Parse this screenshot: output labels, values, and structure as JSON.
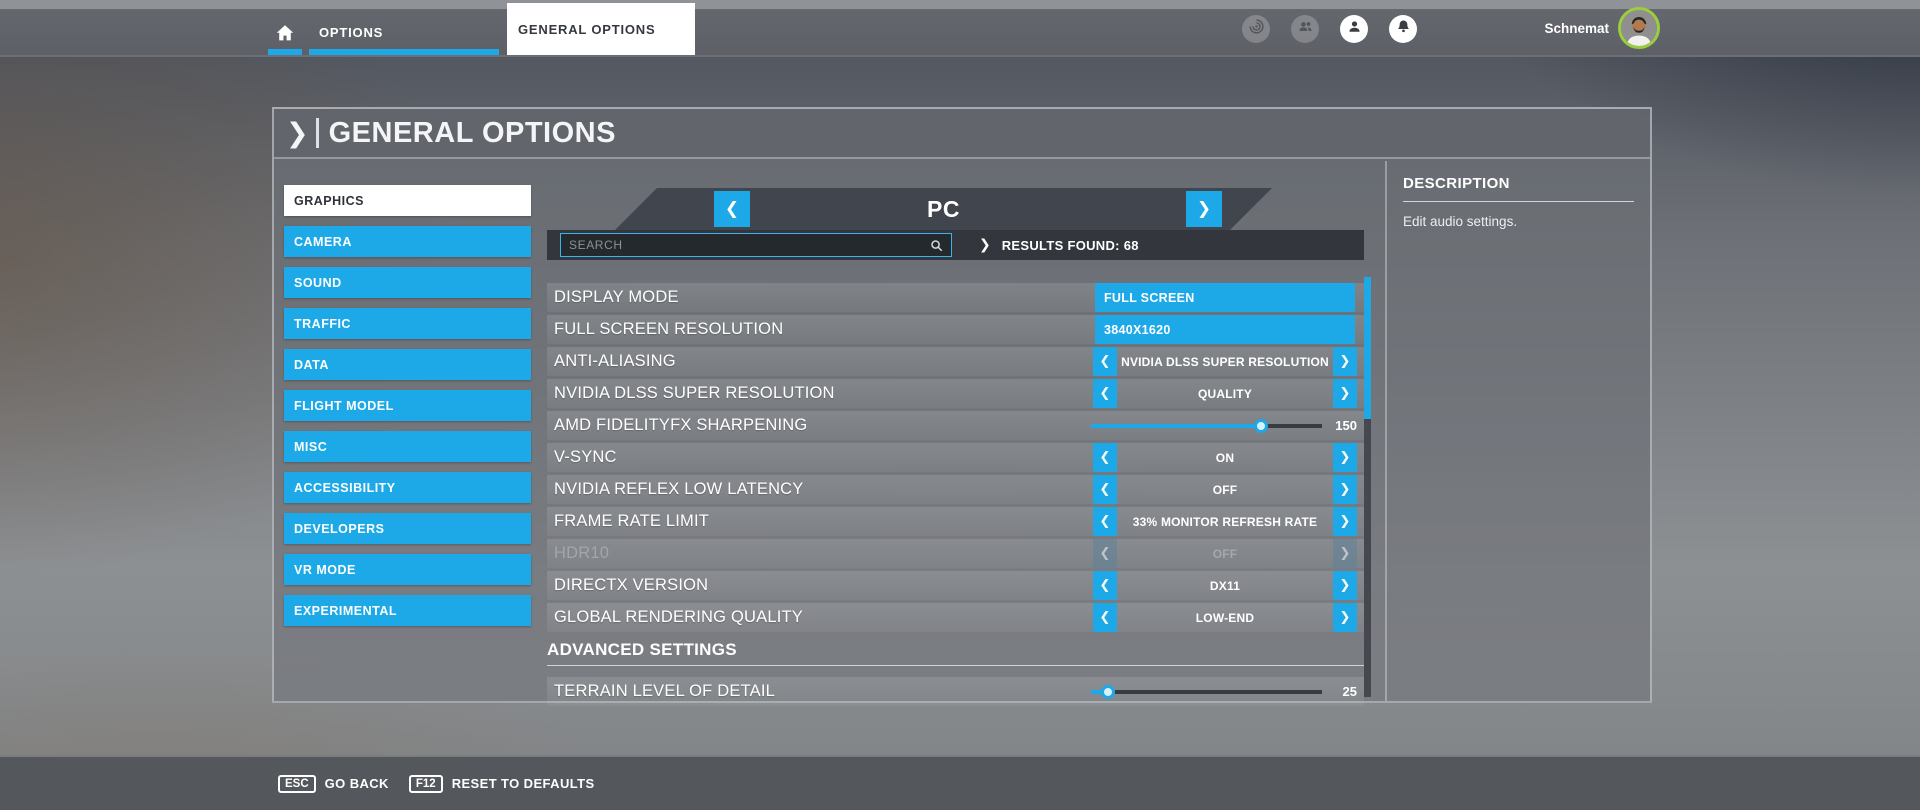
{
  "colors": {
    "accent": "#1da9e8",
    "sidebar_selected": "#ffffff",
    "disabled_text": "#a2a7ad",
    "avatar_ring": "#9ccd3d"
  },
  "top_bar": {
    "home_tab": {
      "icon": "home-icon"
    },
    "tabs": [
      {
        "label": "OPTIONS"
      },
      {
        "label": "GENERAL OPTIONS",
        "active": true
      }
    ],
    "icons": [
      {
        "name": "whirl-icon",
        "muted": true
      },
      {
        "name": "friends-icon",
        "muted": true
      },
      {
        "name": "profile-icon",
        "muted": false
      },
      {
        "name": "notifications-bell-icon",
        "muted": false
      }
    ],
    "username": "Schnemat"
  },
  "panel": {
    "title": "GENERAL OPTIONS",
    "sidebar": {
      "items": [
        {
          "label": "GRAPHICS",
          "selected": true
        },
        {
          "label": "CAMERA"
        },
        {
          "label": "SOUND"
        },
        {
          "label": "TRAFFIC"
        },
        {
          "label": "DATA"
        },
        {
          "label": "FLIGHT MODEL"
        },
        {
          "label": "MISC"
        },
        {
          "label": "ACCESSIBILITY"
        },
        {
          "label": "DEVELOPERS"
        },
        {
          "label": "VR MODE"
        },
        {
          "label": "EXPERIMENTAL"
        }
      ]
    },
    "platform_header": {
      "label": "PC",
      "prev_icon": "chevron-left-icon",
      "next_icon": "chevron-right-icon"
    },
    "search": {
      "placeholder": "SEARCH",
      "icon": "magnifier-icon",
      "results_label": "RESULTS FOUND: 68"
    },
    "settings": [
      {
        "label": "DISPLAY MODE",
        "type": "dropdown",
        "value": "FULL SCREEN"
      },
      {
        "label": "FULL SCREEN RESOLUTION",
        "type": "dropdown",
        "value": "3840X1620"
      },
      {
        "label": "ANTI-ALIASING",
        "type": "selector",
        "value": "NVIDIA DLSS SUPER RESOLUTION"
      },
      {
        "label": "NVIDIA DLSS SUPER RESOLUTION",
        "type": "selector",
        "value": "QUALITY"
      },
      {
        "label": "AMD FIDELITYFX SHARPENING",
        "type": "slider",
        "value": "150",
        "percent": 73.5
      },
      {
        "label": "V-SYNC",
        "type": "selector",
        "value": "ON"
      },
      {
        "label": "NVIDIA REFLEX LOW LATENCY",
        "type": "selector",
        "value": "OFF"
      },
      {
        "label": "FRAME RATE LIMIT",
        "type": "selector",
        "value": "33% MONITOR REFRESH RATE"
      },
      {
        "label": "HDR10",
        "type": "selector",
        "value": "OFF",
        "disabled": true
      },
      {
        "label": "DIRECTX VERSION",
        "type": "selector",
        "value": "DX11"
      },
      {
        "label": "GLOBAL RENDERING QUALITY",
        "type": "selector",
        "value": "LOW-END"
      },
      {
        "label": "ADVANCED SETTINGS",
        "type": "section"
      },
      {
        "label": "TERRAIN LEVEL OF DETAIL",
        "type": "slider",
        "value": "25",
        "percent": 7.5
      }
    ],
    "description": {
      "title": "DESCRIPTION",
      "text": "Edit audio settings."
    }
  },
  "bottom_bar": {
    "shortcuts": [
      {
        "key": "ESC",
        "label": "GO BACK"
      },
      {
        "key": "F12",
        "label": "RESET TO DEFAULTS"
      }
    ]
  }
}
